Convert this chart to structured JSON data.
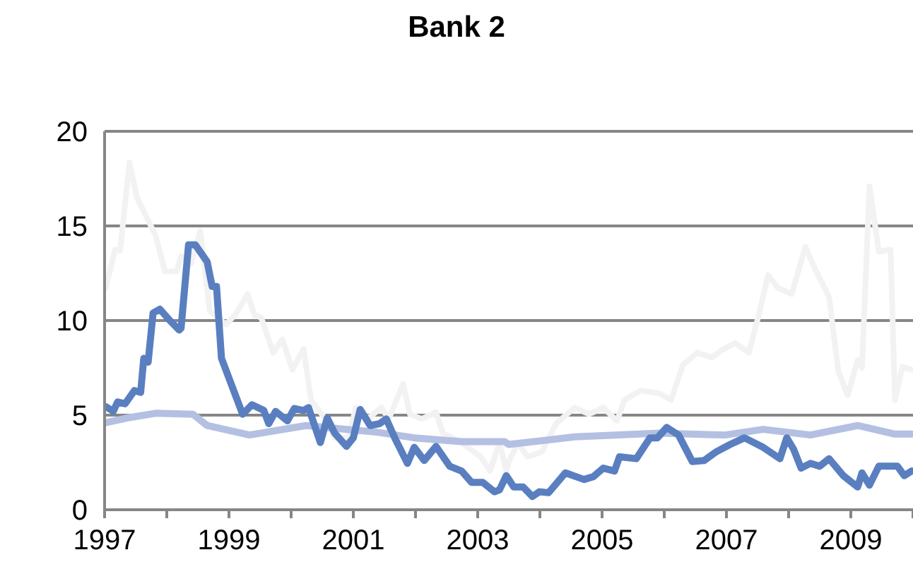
{
  "chart_data": {
    "type": "line",
    "title": "Bank 2",
    "xlim": [
      1997,
      2010
    ],
    "xticks": [
      1997,
      {
        "value": 1998,
        "label": null
      },
      1999,
      {
        "value": 2000,
        "label": null
      },
      2001,
      {
        "value": 2002,
        "label": null
      },
      2003,
      {
        "value": 2004,
        "label": null
      },
      2005,
      {
        "value": 2006,
        "label": null
      },
      2007,
      {
        "value": 2008,
        "label": null
      },
      2009,
      {
        "value": 2010,
        "label": null
      }
    ],
    "ylim": [
      0,
      20
    ],
    "yticks": [
      0,
      5,
      10,
      15,
      20
    ],
    "grid": "y",
    "legend": false,
    "marker": "none",
    "line_style": "solid",
    "series": [
      {
        "color": "#f2f2f2",
        "x": [
          1997.02,
          1997.17,
          1997.25,
          1997.4,
          1997.52,
          1997.82,
          1997.97,
          1998.16,
          1998.23,
          1998.39,
          1998.54,
          1998.69,
          1998.95,
          1999.1,
          1999.3,
          1999.41,
          1999.52,
          1999.71,
          1999.86,
          2000.02,
          2000.2,
          2000.32,
          2000.55,
          2000.7,
          2000.92,
          2001.04,
          2001.23,
          2001.45,
          2001.57,
          2001.8,
          2001.91,
          2002.1,
          2002.33,
          2002.44,
          2002.74,
          2003.05,
          2003.2,
          2003.35,
          2003.46,
          2003.5,
          2003.65,
          2003.8,
          2004.03,
          2004.26,
          2004.56,
          2004.79,
          2005.02,
          2005.24,
          2005.36,
          2005.62,
          2005.92,
          2006.11,
          2006.3,
          2006.53,
          2006.76,
          2006.98,
          2007.14,
          2007.36,
          2007.52,
          2007.67,
          2007.82,
          2008.05,
          2008.27,
          2008.42,
          2008.65,
          2008.8,
          2008.95,
          2009.11,
          2009.18,
          2009.3,
          2009.45,
          2009.64,
          2009.71,
          2009.83,
          2009.98
        ],
        "values": [
          11.75,
          13.75,
          13.7,
          18.35,
          16.5,
          14.5,
          12.6,
          12.6,
          13.4,
          13.0,
          14.75,
          10.5,
          9.8,
          10.3,
          11.4,
          10.3,
          10.15,
          8.3,
          9.0,
          7.4,
          8.5,
          5.8,
          4.8,
          3.8,
          3.8,
          5.4,
          4.8,
          5.4,
          4.8,
          6.65,
          5.05,
          4.8,
          5.15,
          4.05,
          3.55,
          2.8,
          2.05,
          3.55,
          2.05,
          2.55,
          3.55,
          2.8,
          3.05,
          4.55,
          5.4,
          5.05,
          5.4,
          4.7,
          5.8,
          6.3,
          6.15,
          5.8,
          7.65,
          8.3,
          8.05,
          8.55,
          8.8,
          8.3,
          10.3,
          12.4,
          11.75,
          11.4,
          13.9,
          12.75,
          11.25,
          7.3,
          6.05,
          7.9,
          7.5,
          17.1,
          13.65,
          13.75,
          5.8,
          7.55,
          7.4
        ]
      },
      {
        "color": "#b4c0e2",
        "x": [
          1997.02,
          1997.36,
          1997.82,
          1998.42,
          1998.65,
          1999.33,
          2000.24,
          2001.38,
          2001.98,
          2002.74,
          2003.43,
          2003.5,
          2004.56,
          2005.92,
          2006.98,
          2007.59,
          2008.35,
          2009.11,
          2009.71,
          2009.98
        ],
        "values": [
          4.6,
          4.85,
          5.1,
          5.05,
          4.45,
          3.95,
          4.45,
          4.1,
          3.8,
          3.6,
          3.6,
          3.45,
          3.85,
          4.05,
          3.95,
          4.25,
          3.95,
          4.45,
          4.0,
          4.0
        ]
      },
      {
        "color": "#5a7fc0",
        "x": [
          1997.02,
          1997.14,
          1997.21,
          1997.33,
          1997.48,
          1997.58,
          1997.63,
          1997.7,
          1997.78,
          1997.89,
          1998.05,
          1998.2,
          1998.23,
          1998.35,
          1998.46,
          1998.65,
          1998.73,
          1998.8,
          1998.88,
          1999.03,
          1999.22,
          1999.37,
          1999.56,
          1999.64,
          1999.75,
          1999.94,
          2000.05,
          2000.2,
          2000.28,
          2000.47,
          2000.58,
          2000.7,
          2000.89,
          2001.0,
          2001.11,
          2001.27,
          2001.42,
          2001.53,
          2001.68,
          2001.87,
          2001.98,
          2002.14,
          2002.33,
          2002.55,
          2002.74,
          2002.9,
          2003.08,
          2003.27,
          2003.35,
          2003.46,
          2003.58,
          2003.73,
          2003.88,
          2003.99,
          2004.14,
          2004.41,
          2004.71,
          2004.86,
          2005.02,
          2005.2,
          2005.28,
          2005.55,
          2005.77,
          2005.89,
          2006.04,
          2006.23,
          2006.45,
          2006.64,
          2006.83,
          2007.06,
          2007.29,
          2007.59,
          2007.86,
          2007.97,
          2008.08,
          2008.2,
          2008.35,
          2008.5,
          2008.65,
          2008.88,
          2009.11,
          2009.18,
          2009.3,
          2009.45,
          2009.75,
          2009.86,
          2009.98
        ],
        "values": [
          5.45,
          5.2,
          5.7,
          5.6,
          6.3,
          6.2,
          8.0,
          7.8,
          10.4,
          10.6,
          10.0,
          9.5,
          9.6,
          14.0,
          14.0,
          13.1,
          11.8,
          11.8,
          8.0,
          6.7,
          5.05,
          5.55,
          5.25,
          4.55,
          5.2,
          4.7,
          5.35,
          5.25,
          5.4,
          3.55,
          4.85,
          4.05,
          3.35,
          3.8,
          5.3,
          4.45,
          4.55,
          4.8,
          3.7,
          2.45,
          3.3,
          2.6,
          3.35,
          2.3,
          2.05,
          1.45,
          1.45,
          0.95,
          1.05,
          1.8,
          1.2,
          1.2,
          0.7,
          0.95,
          0.9,
          1.95,
          1.6,
          1.75,
          2.2,
          2.05,
          2.8,
          2.7,
          3.8,
          3.8,
          4.35,
          3.95,
          2.55,
          2.6,
          3.05,
          3.45,
          3.8,
          3.3,
          2.7,
          3.8,
          3.2,
          2.2,
          2.45,
          2.3,
          2.7,
          1.8,
          1.2,
          1.95,
          1.3,
          2.3,
          2.3,
          1.8,
          2.05
        ]
      }
    ]
  }
}
